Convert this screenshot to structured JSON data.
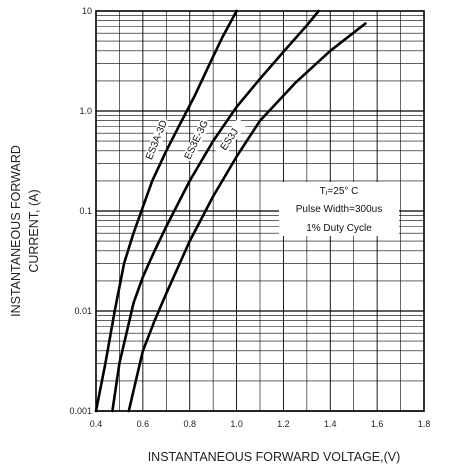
{
  "chart_data": {
    "type": "line",
    "xlabel": "INSTANTANEOUS FORWARD VOLTAGE,(V)",
    "ylabel_lines": [
      "INSTANTANEOUS FORWARD",
      "CURRENT,  (A)"
    ],
    "xlim": [
      0.4,
      1.8
    ],
    "ylim": [
      0.001,
      10
    ],
    "yscale": "log",
    "grid": true,
    "x_ticks": [
      "0.4",
      "0.6",
      "0.8",
      "1.0",
      "1.2",
      "1.4",
      "1.6",
      "1.8"
    ],
    "y_ticks": [
      "0.001",
      "0.01",
      "0.1",
      "1.0",
      "10"
    ],
    "series": [
      {
        "name": "ES3A-3D",
        "x": [
          0.4,
          0.44,
          0.48,
          0.52,
          0.56,
          0.6,
          0.64,
          0.7,
          0.76,
          0.82,
          0.88,
          0.94,
          1.0
        ],
        "y": [
          0.001,
          0.003,
          0.01,
          0.03,
          0.06,
          0.11,
          0.2,
          0.4,
          0.75,
          1.4,
          2.8,
          5.5,
          10
        ]
      },
      {
        "name": "ES3E-3G",
        "x": [
          0.47,
          0.5,
          0.53,
          0.56,
          0.6,
          0.65,
          0.7,
          0.8,
          0.9,
          1.0,
          1.1,
          1.2,
          1.3,
          1.35
        ],
        "y": [
          0.001,
          0.003,
          0.006,
          0.012,
          0.022,
          0.04,
          0.07,
          0.2,
          0.5,
          1.1,
          2.1,
          3.9,
          7.2,
          10
        ]
      },
      {
        "name": "ES3J",
        "x": [
          0.54,
          0.57,
          0.6,
          0.65,
          0.7,
          0.8,
          0.9,
          1.0,
          1.1,
          1.25,
          1.4,
          1.55
        ],
        "y": [
          0.001,
          0.002,
          0.004,
          0.008,
          0.015,
          0.05,
          0.14,
          0.35,
          0.8,
          1.9,
          4.0,
          7.5
        ]
      }
    ],
    "annotation": {
      "lines": [
        "Tⱼ=25° C",
        "Pulse Width=300us",
        "1% Duty Cycle"
      ]
    }
  }
}
